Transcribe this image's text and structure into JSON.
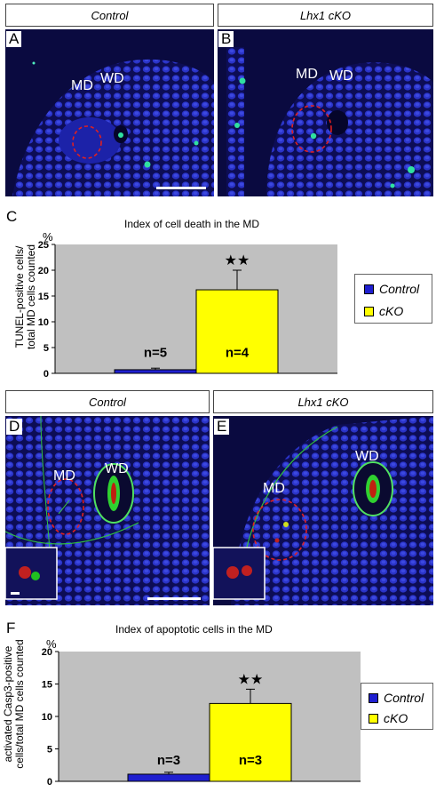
{
  "panel_headers": {
    "top_left": "Control",
    "top_right": "Lhx1 cKO",
    "mid_left": "Control",
    "mid_right": "Lhx1 cKO"
  },
  "panel_letters": {
    "a": "A",
    "b": "B",
    "c": "C",
    "d": "D",
    "e": "E",
    "f": "F"
  },
  "image_labels": {
    "md": "MD",
    "wd": "WD"
  },
  "colors": {
    "control": "#1f1fd0",
    "cko": "#ffff00",
    "plot_bg": "#c0c0c0",
    "tissue": "#10106a",
    "dashed_outline": "#e02020"
  },
  "chart_data": [
    {
      "type": "bar",
      "letter": "C",
      "title": "Index of cell death in the MD",
      "unit": "%",
      "ylabel_line1": "TUNEL-positive cells/",
      "ylabel_line2": "total MD cells counted",
      "categories": [
        "Control",
        "cKO"
      ],
      "values": [
        0.7,
        16.2
      ],
      "errors": [
        0.3,
        3.8
      ],
      "n_labels": [
        "n=5",
        "n=4"
      ],
      "significance": "★★",
      "ylim": [
        0,
        25
      ],
      "yticks": [
        0,
        5,
        10,
        15,
        20,
        25
      ],
      "legend": [
        "Control",
        "cKO"
      ]
    },
    {
      "type": "bar",
      "letter": "F",
      "title": "Index of apoptotic cells in the MD",
      "unit": "%",
      "ylabel_line1": "activated Casp3-positive",
      "ylabel_line2": "cells/total MD cells counted",
      "categories": [
        "Control",
        "cKO"
      ],
      "values": [
        1.1,
        12.0
      ],
      "errors": [
        0.3,
        2.2
      ],
      "n_labels": [
        "n=3",
        "n=3"
      ],
      "significance": "★★",
      "ylim": [
        0,
        20
      ],
      "yticks": [
        0,
        5,
        10,
        15,
        20
      ],
      "legend": [
        "Control",
        "cKO"
      ]
    }
  ]
}
